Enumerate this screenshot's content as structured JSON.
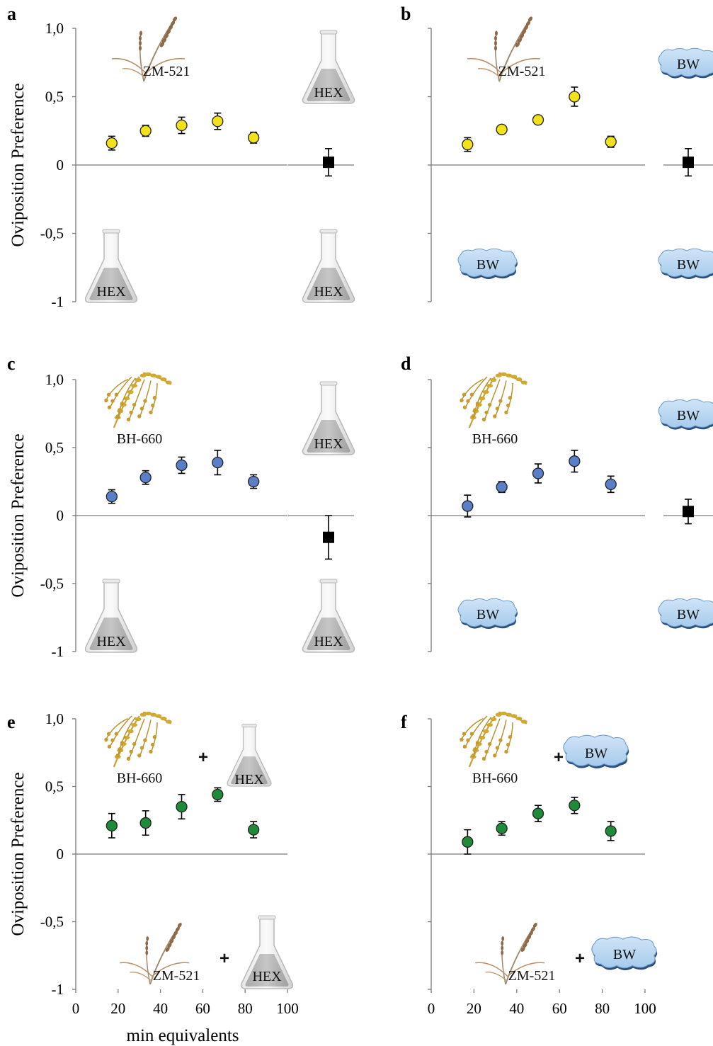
{
  "chart_data": [
    {
      "panel": "a",
      "type": "scatter",
      "ylabel": "Oviposition Preference",
      "ylim": [
        -1,
        1
      ],
      "yticks": [
        "1,0",
        "0,5",
        "0",
        "-0,5",
        "-1"
      ],
      "xlim": [
        0,
        100
      ],
      "marker_color": "#f2e21a",
      "series": [
        {
          "x": [
            17,
            33,
            50,
            67,
            84
          ],
          "y": [
            0.16,
            0.25,
            0.29,
            0.32,
            0.2
          ],
          "err": [
            0.05,
            0.04,
            0.06,
            0.06,
            0.04
          ]
        }
      ],
      "control": {
        "y": 0.02,
        "err": 0.1
      },
      "top_treatment": "ZM-521",
      "top_control": "HEX",
      "bottom_treatment": "HEX",
      "bottom_control": "HEX"
    },
    {
      "panel": "b",
      "type": "scatter",
      "ylim": [
        -1,
        1
      ],
      "xlim": [
        0,
        100
      ],
      "marker_color": "#f2e21a",
      "series": [
        {
          "x": [
            17,
            33,
            50,
            67,
            84
          ],
          "y": [
            0.15,
            0.26,
            0.33,
            0.5,
            0.17
          ],
          "err": [
            0.05,
            0.03,
            0.03,
            0.07,
            0.04
          ]
        }
      ],
      "control": {
        "y": 0.02,
        "err": 0.1
      },
      "top_treatment": "ZM-521",
      "top_control": "BW",
      "bottom_treatment": "BW",
      "bottom_control": "BW"
    },
    {
      "panel": "c",
      "type": "scatter",
      "ylabel": "Oviposition Preference",
      "ylim": [
        -1,
        1
      ],
      "yticks": [
        "1,0",
        "0,5",
        "0",
        "-0,5",
        "-1"
      ],
      "xlim": [
        0,
        100
      ],
      "marker_color": "#5b7fc7",
      "series": [
        {
          "x": [
            17,
            33,
            50,
            67,
            84
          ],
          "y": [
            0.14,
            0.28,
            0.37,
            0.39,
            0.25
          ],
          "err": [
            0.05,
            0.05,
            0.06,
            0.09,
            0.05
          ]
        }
      ],
      "control": {
        "y": -0.16,
        "err": 0.16
      },
      "top_treatment": "BH-660",
      "top_control": "HEX",
      "bottom_treatment": "HEX",
      "bottom_control": "HEX"
    },
    {
      "panel": "d",
      "type": "scatter",
      "ylim": [
        -1,
        1
      ],
      "xlim": [
        0,
        100
      ],
      "marker_color": "#5b7fc7",
      "series": [
        {
          "x": [
            17,
            33,
            50,
            67,
            84
          ],
          "y": [
            0.07,
            0.21,
            0.31,
            0.4,
            0.23
          ],
          "err": [
            0.08,
            0.04,
            0.07,
            0.08,
            0.06
          ]
        }
      ],
      "control": {
        "y": 0.03,
        "err": 0.09
      },
      "top_treatment": "BH-660",
      "top_control": "BW",
      "bottom_treatment": "BW",
      "bottom_control": "BW"
    },
    {
      "panel": "e",
      "type": "scatter",
      "ylabel": "Oviposition Preference",
      "ylim": [
        -1,
        1
      ],
      "yticks": [
        "1,0",
        "0,5",
        "0",
        "-0,5",
        "-1"
      ],
      "xlim": [
        0,
        100
      ],
      "xticks": [
        "0",
        "20",
        "40",
        "60",
        "80",
        "100"
      ],
      "marker_color": "#1f8a3a",
      "series": [
        {
          "x": [
            17,
            33,
            50,
            67,
            84
          ],
          "y": [
            0.21,
            0.23,
            0.35,
            0.44,
            0.18
          ],
          "err": [
            0.09,
            0.09,
            0.09,
            0.05,
            0.06
          ]
        }
      ],
      "top_treatment": "BH-660",
      "top_plus": "+",
      "top_addition": "HEX",
      "bottom_treatment": "ZM-521",
      "bottom_plus": "+",
      "bottom_addition": "HEX"
    },
    {
      "panel": "f",
      "type": "scatter",
      "ylim": [
        -1,
        1
      ],
      "xlim": [
        0,
        100
      ],
      "xticks": [
        "0",
        "20",
        "40",
        "60",
        "80",
        "100"
      ],
      "marker_color": "#1f8a3a",
      "series": [
        {
          "x": [
            17,
            33,
            50,
            67,
            84
          ],
          "y": [
            0.09,
            0.19,
            0.3,
            0.36,
            0.17
          ],
          "err": [
            0.09,
            0.05,
            0.06,
            0.06,
            0.07
          ]
        }
      ],
      "top_treatment": "BH-660",
      "top_plus": "+",
      "top_addition": "BW",
      "bottom_treatment": "ZM-521",
      "bottom_plus": "+",
      "bottom_addition": "BW"
    }
  ],
  "xlabel": "min equivalents"
}
